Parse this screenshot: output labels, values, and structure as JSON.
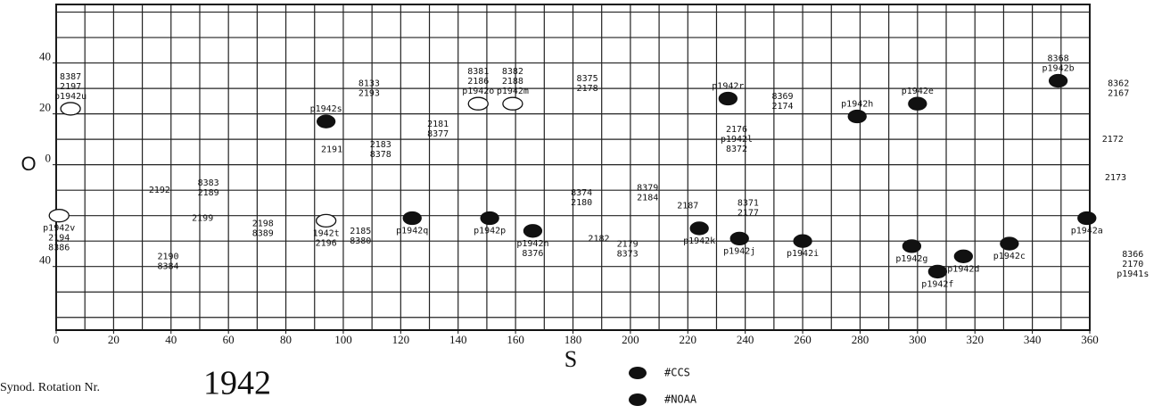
{
  "chart_data": {
    "type": "scatter",
    "x_label": "S",
    "y_label": "O",
    "footer_label": "Synod. Rotation Nr.",
    "rotation": "1942",
    "xlim": [
      0,
      360
    ],
    "ylim": [
      -65,
      63
    ],
    "xticks": [
      0,
      20,
      40,
      60,
      80,
      100,
      120,
      140,
      160,
      180,
      200,
      220,
      240,
      260,
      280,
      300,
      320,
      340,
      360
    ],
    "yticks": [
      40,
      20,
      0,
      {
        "value": -40,
        "label": "40"
      }
    ],
    "grid_step": 10,
    "grid": true,
    "series": [
      {
        "name": "#CCS",
        "color": "#111111",
        "style": "filled",
        "x": [
          94,
          234,
          279,
          300,
          349,
          124,
          151,
          166,
          224,
          238,
          260,
          298,
          307,
          316,
          332,
          359
        ],
        "values": [
          17,
          26,
          19,
          24,
          33,
          -21,
          -21,
          -26,
          -25,
          -29,
          -30,
          -32,
          -42,
          -36,
          -31,
          -21
        ],
        "labels": [
          [
            "p1942s"
          ],
          [
            "p1942r"
          ],
          [
            "p1942h"
          ],
          [
            "p1942e"
          ],
          [
            "8368",
            "p1942b"
          ],
          [
            "p1942q"
          ],
          [
            "p1942p"
          ],
          [
            "p1942n",
            "8376"
          ],
          [
            "p1942k"
          ],
          [
            "p1942j"
          ],
          [
            "p1942i"
          ],
          [
            "p1942g"
          ],
          [
            "p1942f"
          ],
          [
            "p1942d"
          ],
          [
            "p1942c"
          ],
          [
            "p1942a"
          ]
        ]
      },
      {
        "name": "#NOAA",
        "color": "#111111",
        "style": "outline",
        "x": [
          5,
          147,
          159,
          1,
          94
        ],
        "values": [
          22,
          24,
          24,
          -20,
          -22
        ],
        "labels": [
          [
            "8387",
            "2197",
            "p1942u"
          ],
          [
            "8381",
            "2186",
            "p1942o"
          ],
          [
            "8382",
            "2188",
            "p1942m"
          ],
          [
            "p1942v",
            "2194",
            "8386"
          ],
          [
            "1942t",
            "2196"
          ]
        ]
      }
    ],
    "annotations": [
      {
        "text": [
          "8133",
          "2193"
        ],
        "x": 109,
        "y": 30
      },
      {
        "text": [
          "2191"
        ],
        "x": 96,
        "y": 6
      },
      {
        "text": [
          "2183",
          "8378"
        ],
        "x": 113,
        "y": 6
      },
      {
        "text": [
          "2181",
          "8377"
        ],
        "x": 133,
        "y": 14
      },
      {
        "text": [
          "8375",
          "2178"
        ],
        "x": 185,
        "y": 32
      },
      {
        "text": [
          "2176",
          "p1942l",
          "8372"
        ],
        "x": 237,
        "y": 10
      },
      {
        "text": [
          "8369",
          "2174"
        ],
        "x": 253,
        "y": 25
      },
      {
        "text": [
          "8362",
          "2167"
        ],
        "x": 370,
        "y": 30
      },
      {
        "text": [
          "2172"
        ],
        "x": 368,
        "y": 10
      },
      {
        "text": [
          "2173"
        ],
        "x": 369,
        "y": -5
      },
      {
        "text": [
          "2192"
        ],
        "x": 36,
        "y": -10
      },
      {
        "text": [
          "8383",
          "2189"
        ],
        "x": 53,
        "y": -9
      },
      {
        "text": [
          "2199"
        ],
        "x": 51,
        "y": -21
      },
      {
        "text": [
          "2190",
          "8384"
        ],
        "x": 39,
        "y": -38
      },
      {
        "text": [
          "2198",
          "8389"
        ],
        "x": 72,
        "y": -25
      },
      {
        "text": [
          "2185",
          "8380"
        ],
        "x": 106,
        "y": -28
      },
      {
        "text": [
          "8374",
          "2180"
        ],
        "x": 183,
        "y": -13
      },
      {
        "text": [
          "8379",
          "2184"
        ],
        "x": 206,
        "y": -11
      },
      {
        "text": [
          "2182"
        ],
        "x": 189,
        "y": -29
      },
      {
        "text": [
          "2179",
          "8373"
        ],
        "x": 199,
        "y": -33
      },
      {
        "text": [
          "2187"
        ],
        "x": 220,
        "y": -16
      },
      {
        "text": [
          "8371",
          "2177"
        ],
        "x": 241,
        "y": -17
      },
      {
        "text": [
          "8366",
          "2170",
          "p1941s"
        ],
        "x": 375,
        "y": -39
      }
    ]
  }
}
